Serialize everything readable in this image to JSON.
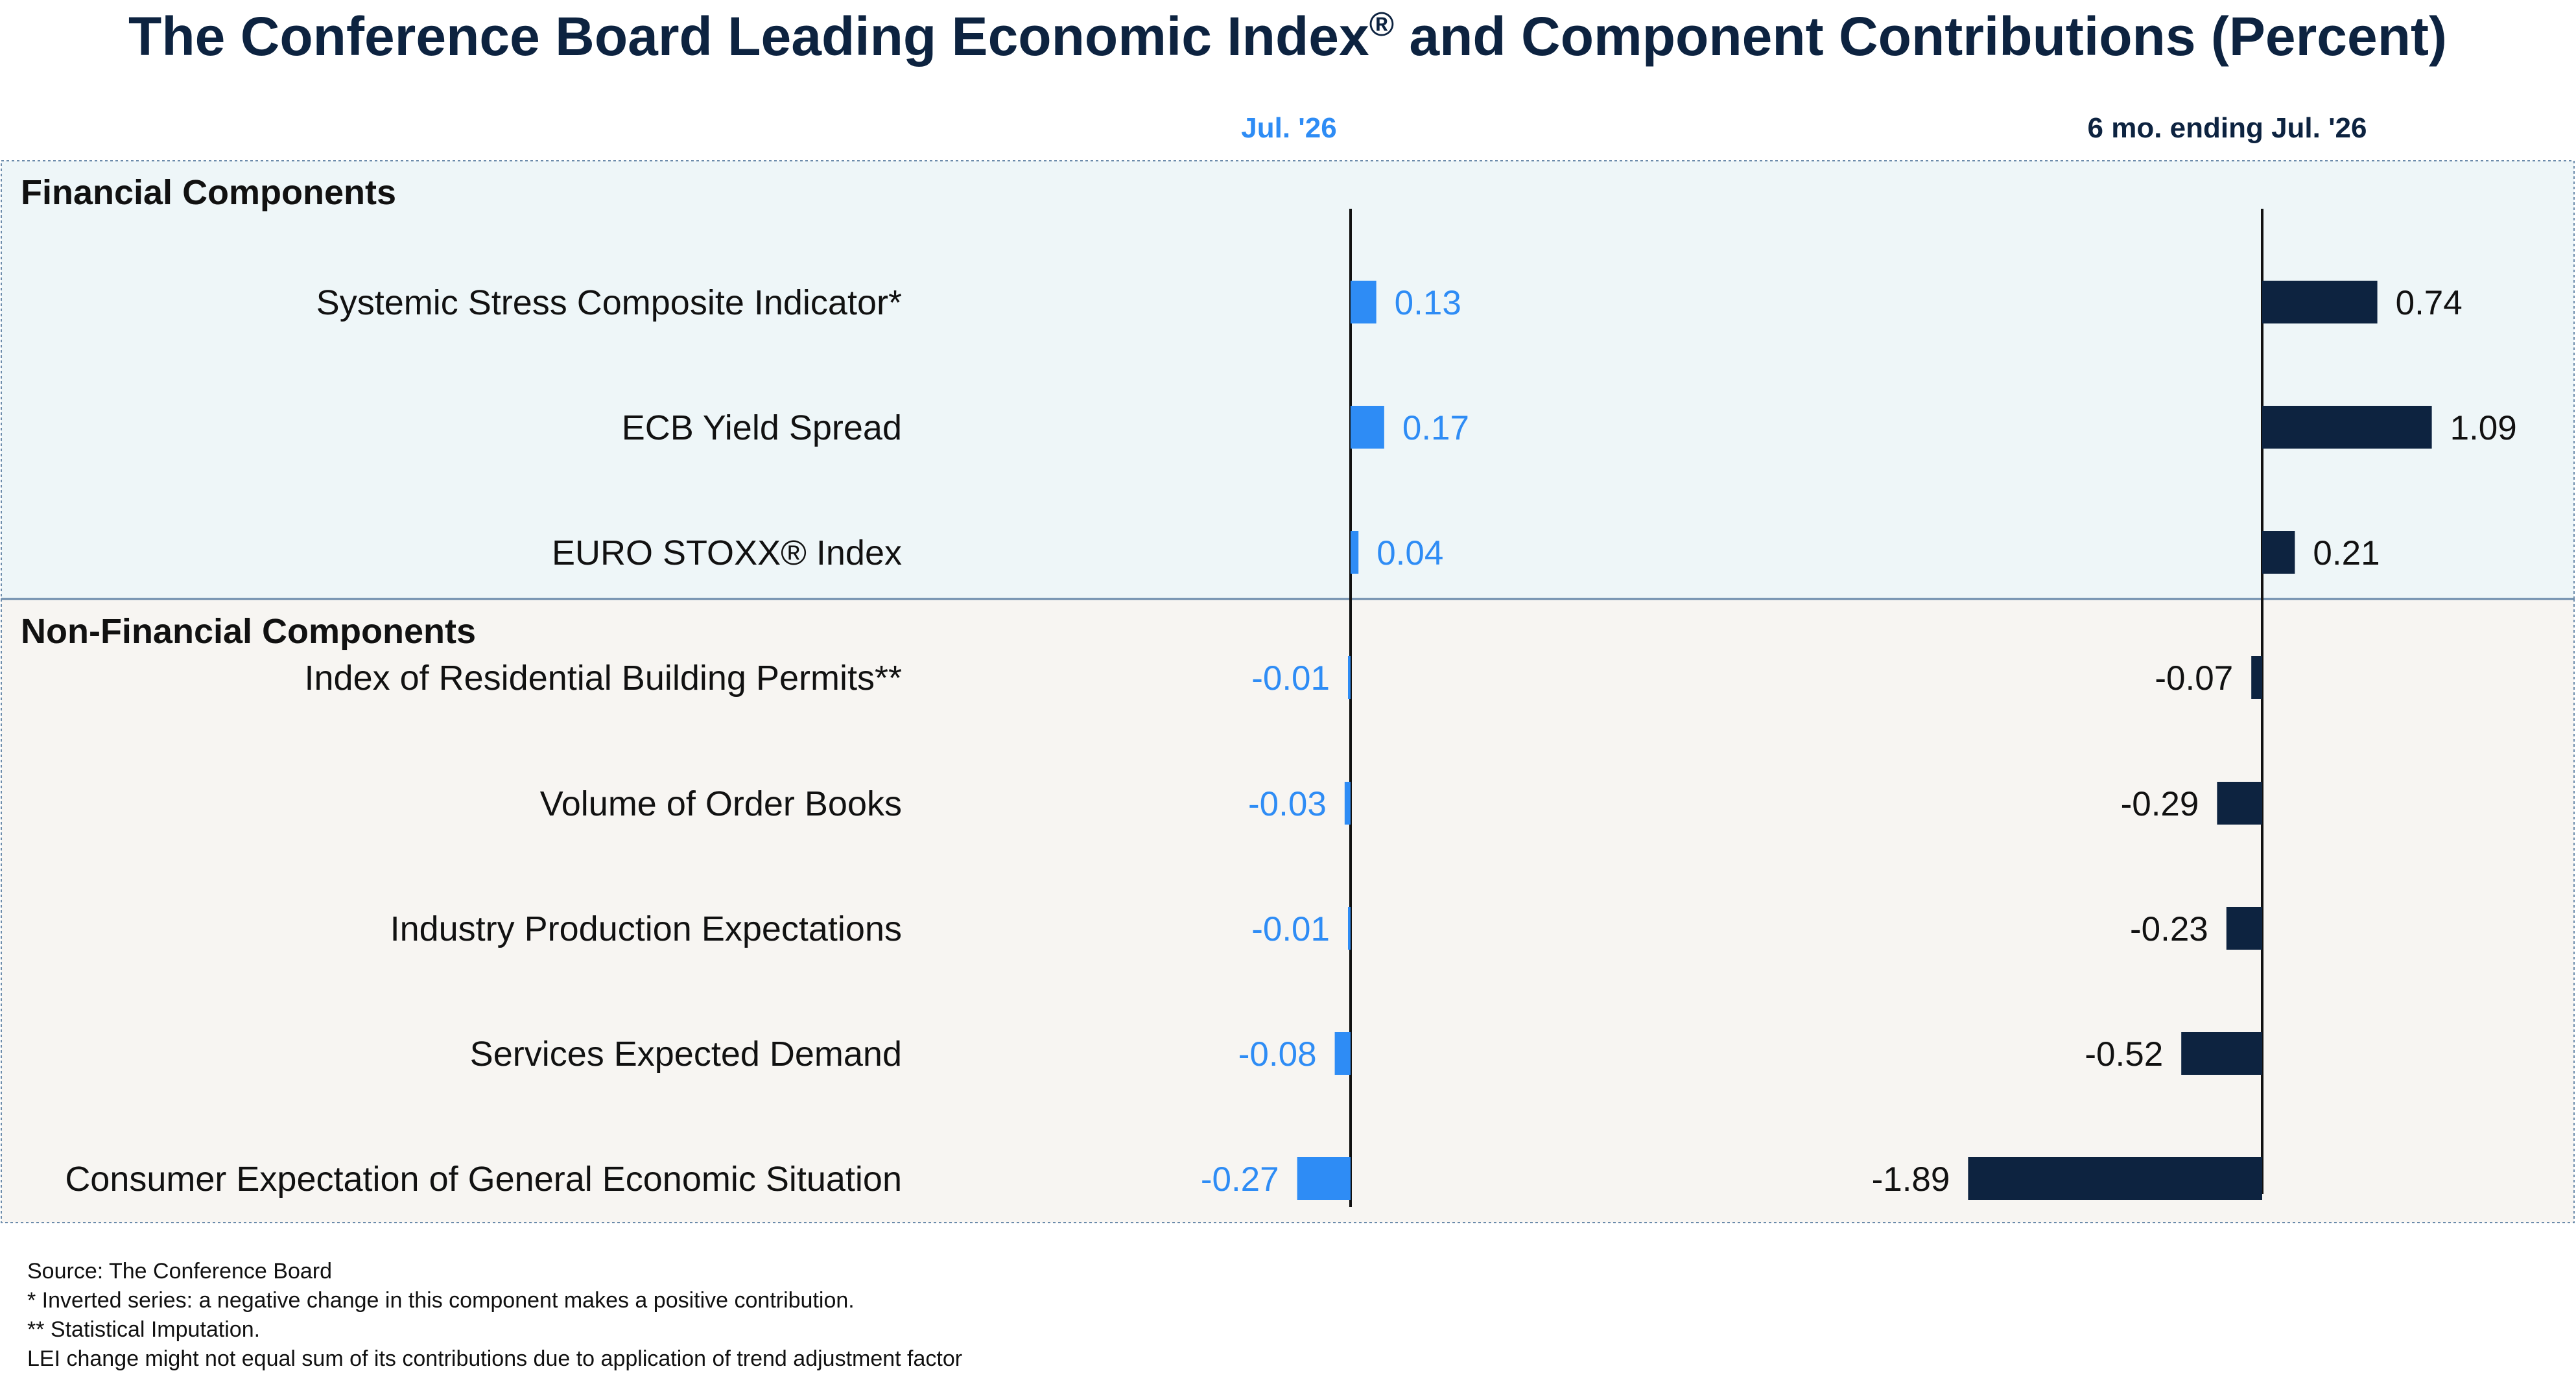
{
  "title_main": "The Conference Board Leading Economic Index",
  "title_reg": "®",
  "title_rest": " and Component Contributions (Percent)",
  "colors": {
    "title": "#0d2340",
    "jul_bar": "#2e8cf5",
    "six_mo_bar": "#0d2340",
    "fin_bg": "#eef6f8",
    "nonfin_bg": "#f7f5f2",
    "border": "#6a8aaa"
  },
  "chart_data": {
    "type": "bar",
    "orientation": "horizontal",
    "sections": [
      {
        "name": "Financial Components",
        "categories": [
          "Systemic Stress Composite Indicator*",
          "ECB Yield Spread",
          "EURO STOXX® Index"
        ]
      },
      {
        "name": "Non-Financial Components",
        "categories": [
          "Index of Residential Building Permits**",
          "Volume of Order Books",
          "Industry Production Expectations",
          "Services Expected Demand",
          "Consumer Expectation of General Economic Situation"
        ]
      }
    ],
    "categories": [
      "Systemic Stress Composite Indicator*",
      "ECB Yield Spread",
      "EURO STOXX® Index",
      "Index of Residential Building Permits**",
      "Volume of Order Books",
      "Industry Production Expectations",
      "Services Expected Demand",
      "Consumer Expectation of General Economic Situation"
    ],
    "series": [
      {
        "name": "Jul. '26",
        "values": [
          0.13,
          0.17,
          0.04,
          -0.01,
          -0.03,
          -0.01,
          -0.08,
          -0.27
        ],
        "labels": [
          "0.13",
          "0.17",
          "0.04",
          "-0.01",
          "-0.03",
          "-0.01",
          "-0.08",
          "-0.27"
        ]
      },
      {
        "name": "6 mo. ending Jul. '26",
        "values": [
          0.74,
          1.09,
          0.21,
          -0.07,
          -0.29,
          -0.23,
          -0.52,
          -1.89
        ],
        "labels": [
          "0.74",
          "1.09",
          "0.21",
          "-0.07",
          "-0.29",
          "-0.23",
          "-0.52",
          "-1.89"
        ]
      }
    ]
  },
  "footnotes": [
    "Source: The Conference Board",
    "* Inverted series: a negative change in this component makes a positive contribution.",
    "**  Statistical Imputation.",
    "LEI change might not equal sum of its contributions due to application of trend adjustment factor"
  ]
}
